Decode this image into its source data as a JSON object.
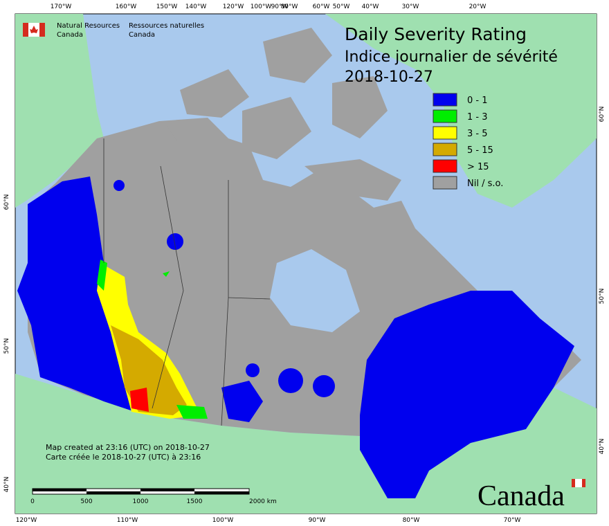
{
  "header": {
    "agency_en": [
      "Natural Resources",
      "Canada"
    ],
    "agency_fr": [
      "Ressources naturelles",
      "Canada"
    ]
  },
  "title": {
    "en": "Daily Severity Rating",
    "fr": "Indice journalier de sévérité",
    "date": "2018-10-27"
  },
  "legend": [
    {
      "label": "0 - 1",
      "color": "#0000ee"
    },
    {
      "label": "1 - 3",
      "color": "#00ee00"
    },
    {
      "label": "3 - 5",
      "color": "#ffff00"
    },
    {
      "label": "5 - 15",
      "color": "#d4aa00"
    },
    {
      "label": "> 15",
      "color": "#ff0000"
    },
    {
      "label": "Nil / s.o.",
      "color": "#a0a0a0"
    }
  ],
  "graticule": {
    "top": [
      "170°W",
      "160°W",
      "150°W",
      "140°W",
      "120°W",
      "100°W",
      "90°W",
      "80°W",
      "60°W",
      "50°W",
      "40°W",
      "30°W",
      "20°W"
    ],
    "bottom": [
      "120°W",
      "110°W",
      "100°W",
      "90°W",
      "80°W",
      "70°W"
    ],
    "left": [
      "60°N",
      "50°N",
      "40°N"
    ],
    "right": [
      "60°N",
      "50°N",
      "40°N"
    ]
  },
  "notes": {
    "created_en": "Map created at 23:16 (UTC) on 2018-10-27",
    "created_fr": "Carte créée le 2018-10-27 (UTC) à 23:16"
  },
  "scale_bar": {
    "labels": [
      "0",
      "500",
      "1000",
      "1500",
      "2000 km"
    ]
  },
  "wordmark": "Canada"
}
